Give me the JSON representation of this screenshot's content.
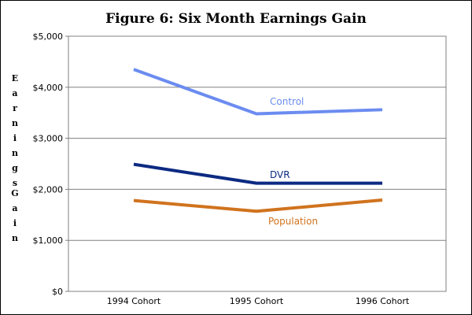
{
  "title": "Figure 6:  Six Month Earnings Gain",
  "ylabel_words": [
    "Earnings",
    "Gain"
  ],
  "chart_data": {
    "type": "line",
    "title": "Figure 6:  Six Month Earnings Gain",
    "ylabel": "Earnings Gain",
    "xlabel": "",
    "categories": [
      "1994 Cohort",
      "1995 Cohort",
      "1996 Cohort"
    ],
    "ylim": [
      0,
      5000
    ],
    "yticks": [
      0,
      1000,
      2000,
      3000,
      4000,
      5000
    ],
    "ytick_labels": [
      "$0",
      "$1,000",
      "$2,000",
      "$3,000",
      "$4,000",
      "$5,000"
    ],
    "grid": true,
    "legend": "inline labels",
    "series": [
      {
        "name": "Control",
        "values": [
          4350,
          3480,
          3560
        ],
        "color": "#6b8cf0"
      },
      {
        "name": "DVR",
        "values": [
          2490,
          2120,
          2120
        ],
        "color": "#0c2a82"
      },
      {
        "name": "Population",
        "values": [
          1780,
          1570,
          1790
        ],
        "color": "#d0731e"
      }
    ]
  }
}
